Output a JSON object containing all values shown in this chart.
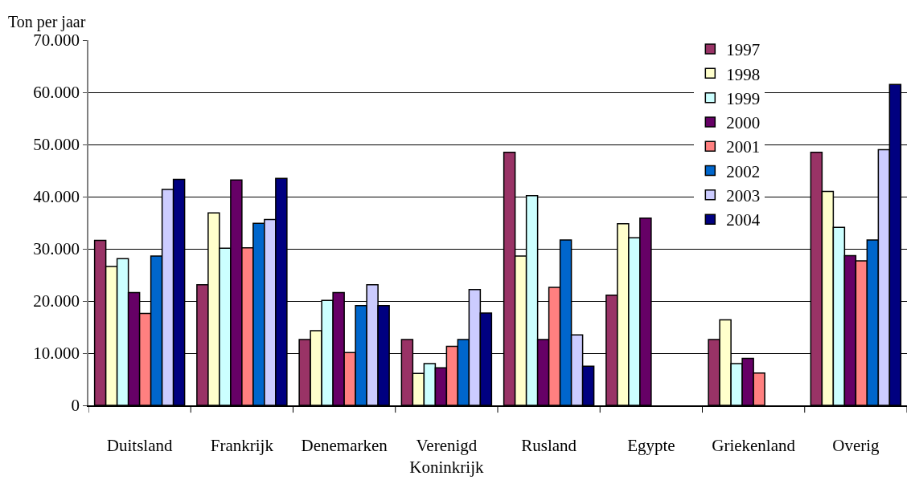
{
  "chart_data": {
    "type": "bar",
    "ylabel": "Ton per jaar",
    "categories": [
      "Duitsland",
      "Frankrijk",
      "Denemarken",
      "Verenigd\nKoninkrijk",
      "Rusland",
      "Egypte",
      "Griekenland",
      "Overig"
    ],
    "series": [
      {
        "name": "1997",
        "color": "#993366",
        "values": [
          31600,
          23100,
          12600,
          12600,
          48500,
          21100,
          12600,
          48500
        ]
      },
      {
        "name": "1998",
        "color": "#ffffcc",
        "values": [
          26600,
          36900,
          14300,
          6100,
          28600,
          34800,
          16400,
          41000
        ]
      },
      {
        "name": "1999",
        "color": "#ccffff",
        "values": [
          28100,
          30100,
          20100,
          8000,
          40200,
          32100,
          8000,
          34100
        ]
      },
      {
        "name": "2000",
        "color": "#660066",
        "values": [
          21600,
          43200,
          21600,
          7200,
          12600,
          35900,
          9000,
          28700
        ]
      },
      {
        "name": "2001",
        "color": "#ff8080",
        "values": [
          17600,
          30200,
          10100,
          11300,
          22600,
          null,
          6200,
          27700
        ]
      },
      {
        "name": "2002",
        "color": "#0066cc",
        "values": [
          28600,
          34900,
          19100,
          12600,
          31700,
          null,
          null,
          31700
        ]
      },
      {
        "name": "2003",
        "color": "#ccccff",
        "values": [
          41400,
          35600,
          23100,
          22200,
          13500,
          null,
          null,
          49000
        ]
      },
      {
        "name": "2004",
        "color": "#000080",
        "values": [
          43300,
          43500,
          19100,
          17700,
          7500,
          null,
          null,
          61500
        ]
      }
    ],
    "ylim": [
      0,
      70000
    ],
    "yticks": [
      {
        "value": 0,
        "label": "0"
      },
      {
        "value": 10000,
        "label": "10.000"
      },
      {
        "value": 20000,
        "label": "20.000"
      },
      {
        "value": 30000,
        "label": "30.000"
      },
      {
        "value": 40000,
        "label": "40.000"
      },
      {
        "value": 50000,
        "label": "50.000"
      },
      {
        "value": 60000,
        "label": "60.000"
      },
      {
        "value": 70000,
        "label": "70.000"
      }
    ],
    "grid": "y",
    "legend": "top right"
  }
}
